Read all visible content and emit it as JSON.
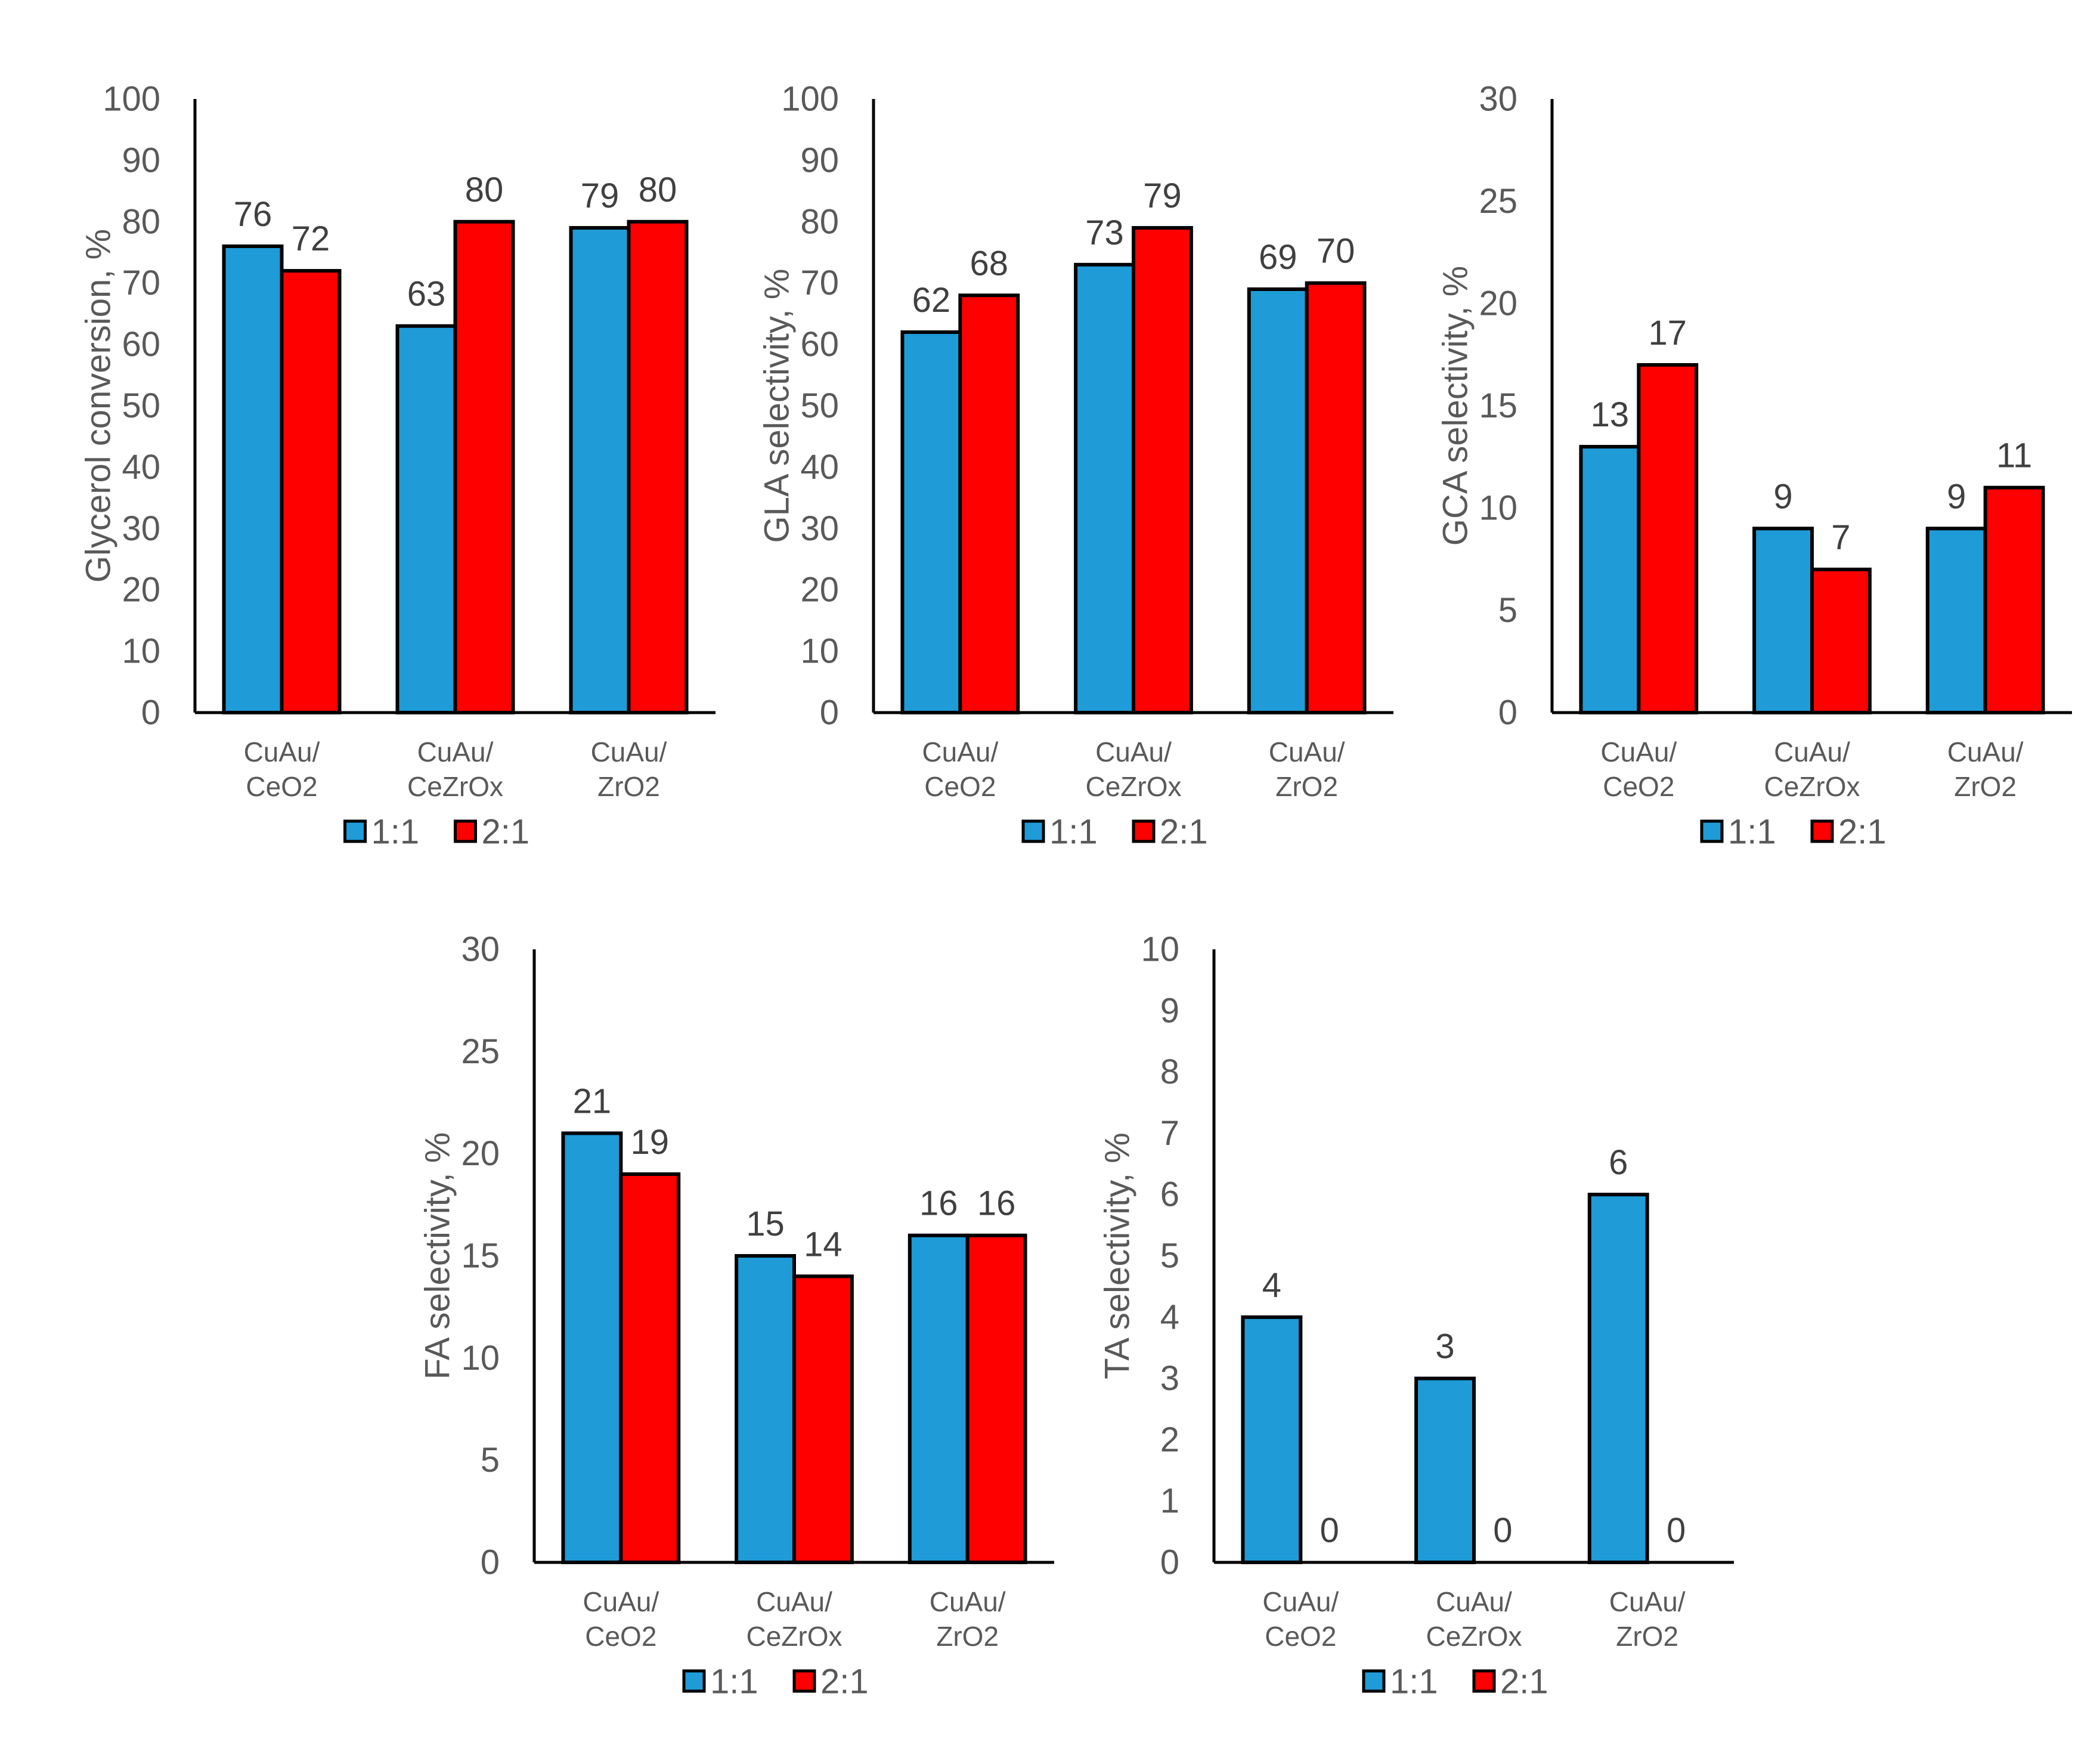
{
  "colors": {
    "series_1_1": "#1f9bd7",
    "series_2_1": "#ff0000",
    "axis": "#000000",
    "text": "#595959"
  },
  "chart_data": [
    {
      "type": "bar",
      "id": "glycerol",
      "categories": [
        [
          "CuAu/",
          "CeO2"
        ],
        [
          "CuAu/",
          "CeZrOx"
        ],
        [
          "CuAu/",
          "ZrO2"
        ]
      ],
      "series": [
        {
          "name": "1:1",
          "values": [
            76,
            63,
            79
          ]
        },
        {
          "name": "2:1",
          "values": [
            72,
            80,
            80
          ]
        }
      ],
      "data_labels": [
        [
          "76",
          "63",
          "79"
        ],
        [
          "72",
          "80",
          "80"
        ]
      ],
      "ylabel": "Glycerol conversion, %",
      "ylim": [
        0,
        100
      ],
      "yticks": [
        "0",
        "10",
        "20",
        "30",
        "40",
        "50",
        "60",
        "70",
        "80",
        "90",
        "100"
      ],
      "legend": "bottom"
    },
    {
      "type": "bar",
      "id": "gla",
      "categories": [
        [
          "CuAu/",
          "CeO2"
        ],
        [
          "CuAu/",
          "CeZrOx"
        ],
        [
          "CuAu/",
          "ZrO2"
        ]
      ],
      "series": [
        {
          "name": "1:1",
          "values": [
            62,
            73,
            69
          ]
        },
        {
          "name": "2:1",
          "values": [
            68,
            79,
            70
          ]
        }
      ],
      "data_labels": [
        [
          "62",
          "73",
          "69"
        ],
        [
          "68",
          "79",
          "70"
        ]
      ],
      "ylabel": "GLA selectivity, %",
      "ylim": [
        0,
        100
      ],
      "yticks": [
        "0",
        "10",
        "20",
        "30",
        "40",
        "50",
        "60",
        "70",
        "80",
        "90",
        "100"
      ],
      "legend": "bottom"
    },
    {
      "type": "bar",
      "id": "gca",
      "categories": [
        [
          "CuAu/",
          "CeO2"
        ],
        [
          "CuAu/",
          "CeZrOx"
        ],
        [
          "CuAu/",
          "ZrO2"
        ]
      ],
      "series": [
        {
          "name": "1:1",
          "values": [
            13,
            9,
            9
          ]
        },
        {
          "name": "2:1",
          "values": [
            17,
            7,
            11
          ]
        }
      ],
      "data_labels": [
        [
          "13",
          "9",
          "9"
        ],
        [
          "17",
          "7",
          "11"
        ]
      ],
      "ylabel": "GCA selectivity, %",
      "ylim": [
        0,
        30
      ],
      "yticks": [
        "0",
        "5",
        "10",
        "15",
        "20",
        "25",
        "30"
      ],
      "legend": "bottom"
    },
    {
      "type": "bar",
      "id": "fa",
      "categories": [
        [
          "CuAu/",
          "CeO2"
        ],
        [
          "CuAu/",
          "CeZrOx"
        ],
        [
          "CuAu/",
          "ZrO2"
        ]
      ],
      "series": [
        {
          "name": "1:1",
          "values": [
            21,
            15,
            16
          ]
        },
        {
          "name": "2:1",
          "values": [
            19,
            14,
            16
          ]
        }
      ],
      "data_labels": [
        [
          "21",
          "15",
          "16"
        ],
        [
          "19",
          "14",
          "16"
        ]
      ],
      "ylabel": "FA selectivity, %",
      "ylim": [
        0,
        30
      ],
      "yticks": [
        "0",
        "5",
        "10",
        "15",
        "20",
        "25",
        "30"
      ],
      "legend": "bottom"
    },
    {
      "type": "bar",
      "id": "ta",
      "categories": [
        [
          "CuAu/",
          "CeO2"
        ],
        [
          "CuAu/",
          "CeZrOx"
        ],
        [
          "CuAu/",
          "ZrO2"
        ]
      ],
      "series": [
        {
          "name": "1:1",
          "values": [
            4,
            3,
            6
          ]
        },
        {
          "name": "2:1",
          "values": [
            0,
            0,
            0
          ]
        }
      ],
      "data_labels": [
        [
          "4",
          "3",
          "6"
        ],
        [
          "0",
          "0",
          "0"
        ]
      ],
      "ylabel": "TA selectivity, %",
      "ylim": [
        0,
        10
      ],
      "yticks": [
        "0",
        "1",
        "2",
        "3",
        "4",
        "5",
        "6",
        "7",
        "8",
        "9",
        "10"
      ],
      "legend": "bottom"
    }
  ]
}
